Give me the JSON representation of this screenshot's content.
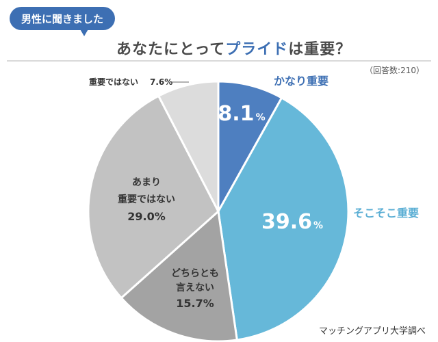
{
  "header": {
    "tag_label": "男性に聞きました",
    "title_prefix": "あなたにとって",
    "title_highlight": "プライド",
    "title_suffix": "は重要？"
  },
  "respondents": "（回答数:210）",
  "source": "マッチングアプリ大学調べ",
  "chart_data": {
    "type": "pie",
    "title": "あなたにとってプライドは重要？",
    "start": "12 o'clock, clockwise",
    "slices": [
      {
        "label": "かなり重要",
        "value": 8.1,
        "value_number": "8.1",
        "unit": "%",
        "color": "#4e7fc0",
        "label_color": "#3d6fb3"
      },
      {
        "label": "そこそこ重要",
        "value": 39.6,
        "value_number": "39.6",
        "unit": "%",
        "color": "#66b8d9",
        "label_color": "#5aaed4"
      },
      {
        "label_lines": [
          "どちらとも",
          "言えない"
        ],
        "value": 15.7,
        "value_text": "15.7%",
        "color": "#a3a3a3",
        "label_color": "#333333"
      },
      {
        "label_lines": [
          "あまり",
          "重要ではない"
        ],
        "value": 29.0,
        "value_text": "29.0%",
        "color": "#c2c2c2",
        "label_color": "#333333"
      },
      {
        "label": "重要ではない",
        "value": 7.6,
        "value_text": "7.6%",
        "color": "#dcdcdc",
        "label_color": "#333333"
      }
    ]
  }
}
